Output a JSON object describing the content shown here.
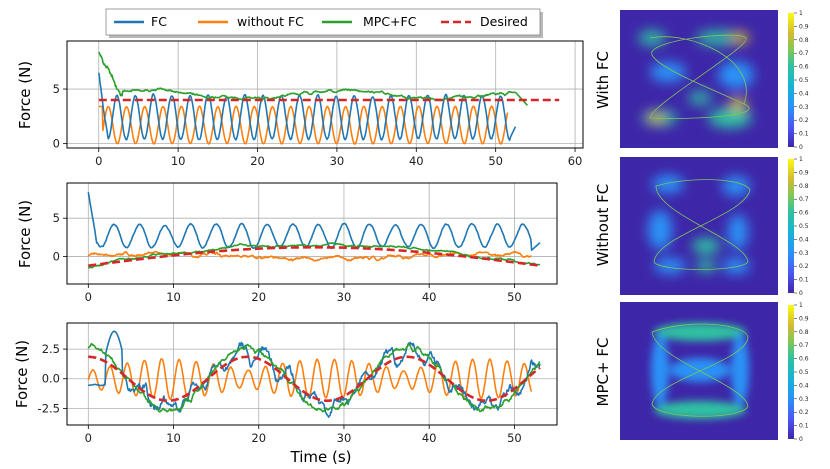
{
  "colors": {
    "FC": "#1f77b4",
    "without FC": "#ff7f0e",
    "MPC+FC": "#2ca02c",
    "Desired": "#d62728"
  },
  "legend": {
    "placement": "top-center",
    "entries": [
      "FC",
      "without FC",
      "MPC+FC",
      "Desired"
    ]
  },
  "xlabel": "Time (s)",
  "chart_data": [
    {
      "type": "line",
      "ylabel": "Force (N)",
      "xlim": [
        -4,
        61
      ],
      "ylim": [
        -0.4,
        9.4
      ],
      "xticks": [
        0,
        10,
        20,
        30,
        40,
        50,
        60
      ],
      "yticks": [
        0,
        5
      ],
      "grid": true,
      "series": [
        {
          "name": "FC",
          "x_end": 52.5,
          "shape": "oscillating 0.3-4.5, period ~2.3s, initial spike 6.3",
          "values_sample": [
            6.3,
            0.6,
            4.2,
            0.8,
            4.5,
            1.1,
            4.0,
            1.0
          ]
        },
        {
          "name": "without FC",
          "x_end": 51.5,
          "shape": "oscillating 0.1-3.5, period ~2.3s",
          "values_sample": [
            3.4,
            0.1,
            3.2,
            0.2,
            3.3,
            0.2
          ]
        },
        {
          "name": "MPC+FC",
          "x_end": 54,
          "shape": "starts 8.5, settles ~4.5",
          "values_sample": [
            8.5,
            7.5,
            4.5,
            5.2,
            4.6,
            4.7,
            3.5
          ]
        },
        {
          "name": "Desired",
          "x_start": 0,
          "x_end": 58,
          "values_sample": [
            4,
            4
          ]
        }
      ]
    },
    {
      "type": "line",
      "ylabel": "Force (N)",
      "xlim": [
        -2.5,
        55
      ],
      "ylim": [
        -3.6,
        9.6
      ],
      "xticks": [
        0,
        10,
        20,
        30,
        40,
        50
      ],
      "yticks": [
        0,
        5
      ],
      "grid": true,
      "series": [
        {
          "name": "FC",
          "x_end": 53,
          "shape": "oscillating 1-4.3, period ~3s, initial spike 8.6",
          "values_sample": [
            8.6,
            1.0,
            4.0,
            1.0,
            4.2
          ]
        },
        {
          "name": "without FC",
          "x_end": 52,
          "shape": "near zero -1 to 1",
          "values_sample": [
            -1,
            0.5,
            -0.5,
            0.7
          ]
        },
        {
          "name": "MPC+FC",
          "x_end": 53,
          "shape": "follows desired",
          "values_sample": [
            -1.2,
            2.0,
            0.5,
            -1.3
          ]
        },
        {
          "name": "Desired",
          "x_start": 0,
          "x_end": 53,
          "shape": "half-sine, peak 1.2 at t=24",
          "values_sample": [
            -1.2,
            1.2,
            -1.2
          ]
        }
      ]
    },
    {
      "type": "line",
      "ylabel": "Force (N)",
      "xlim": [
        -2.5,
        55
      ],
      "ylim": [
        -3.9,
        4.7
      ],
      "xticks": [
        0,
        10,
        20,
        30,
        40,
        50
      ],
      "yticks": [
        -2.5,
        0.0,
        2.5
      ],
      "grid": true,
      "series": [
        {
          "name": "FC",
          "x_end": 52.5,
          "values_sample": [
            -0.5,
            4.0,
            -3.2,
            2.6,
            -2.5,
            2.5
          ]
        },
        {
          "name": "without FC",
          "x_end": 52.5,
          "values_sample": [
            1.5,
            -1.0,
            1.2,
            -1.5,
            1.0
          ]
        },
        {
          "name": "MPC+FC",
          "x_end": 52.5,
          "values_sample": [
            2.0,
            3.0,
            -3.5,
            3.0,
            -2.0,
            2.3,
            -2.5
          ]
        },
        {
          "name": "Desired",
          "x_start": 0,
          "x_end": 52.5,
          "shape": "sine, amplitude 1.85, period ~19s",
          "values_sample": [
            1.9,
            -1.8,
            1.9,
            -1.8,
            1.9,
            -1.8
          ]
        }
      ]
    },
    {
      "type": "heatmap",
      "ylabel": "With FC",
      "colorbar": {
        "min": 0,
        "max": 1,
        "ticks": [
          "0",
          "0.1",
          "0.2",
          "0.3",
          "0.4",
          "0.5",
          "0.6",
          "0.7",
          "0.8",
          "0.9",
          "1"
        ]
      }
    },
    {
      "type": "heatmap",
      "ylabel": "Without  FC",
      "colorbar": {
        "min": 0,
        "max": 1,
        "ticks": [
          "0",
          "0.1",
          "0.2",
          "0.3",
          "0.4",
          "0.5",
          "0.6",
          "0.7",
          "0.8",
          "0.9",
          "1"
        ]
      }
    },
    {
      "type": "heatmap",
      "ylabel": "MPC+ FC",
      "colorbar": {
        "min": 0,
        "max": 1,
        "ticks": [
          "0",
          "0.1",
          "0.2",
          "0.3",
          "0.4",
          "0.5",
          "0.6",
          "0.7",
          "0.8",
          "0.9",
          "1"
        ]
      }
    }
  ]
}
